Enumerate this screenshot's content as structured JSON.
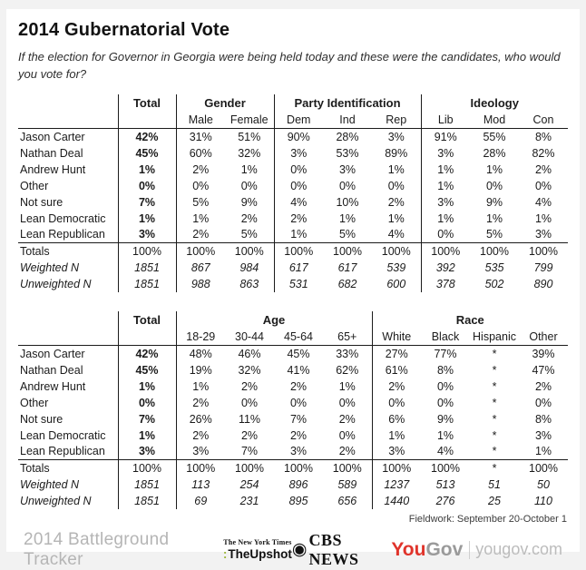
{
  "page": {
    "title": "2014 Gubernatorial Vote",
    "subtitle": "If the election for Governor in Georgia were being held today and these were the candidates, who would you vote for?",
    "fieldwork_note": "Fieldwork:  September 20-October 1"
  },
  "colors": {
    "table_line": "#1b1b1b",
    "page_background": "#f2f2f2",
    "card_background": "#ffffff",
    "tracker_gray": "#b5b5b5",
    "upshot_green": "#9db63c",
    "yougov_red": "#e0342b",
    "yougov_gray": "#9a9a9a"
  },
  "chart_data": [
    {
      "type": "table",
      "total_label": "Total",
      "groups": [
        {
          "label": "Gender",
          "subcols": [
            "Male",
            "Female"
          ]
        },
        {
          "label": "Party Identification",
          "subcols": [
            "Dem",
            "Ind",
            "Rep"
          ]
        },
        {
          "label": "Ideology",
          "subcols": [
            "Lib",
            "Mod",
            "Con"
          ]
        }
      ],
      "rows": [
        {
          "label": "Jason Carter",
          "total": "42%",
          "values": [
            "31%",
            "51%",
            "90%",
            "28%",
            "3%",
            "91%",
            "55%",
            "8%"
          ]
        },
        {
          "label": "Nathan Deal",
          "total": "45%",
          "values": [
            "60%",
            "32%",
            "3%",
            "53%",
            "89%",
            "3%",
            "28%",
            "82%"
          ]
        },
        {
          "label": "Andrew Hunt",
          "total": "1%",
          "values": [
            "2%",
            "1%",
            "0%",
            "3%",
            "1%",
            "1%",
            "1%",
            "2%"
          ]
        },
        {
          "label": "Other",
          "total": "0%",
          "values": [
            "0%",
            "0%",
            "0%",
            "0%",
            "0%",
            "1%",
            "0%",
            "0%"
          ]
        },
        {
          "label": "Not sure",
          "total": "7%",
          "values": [
            "5%",
            "9%",
            "4%",
            "10%",
            "2%",
            "3%",
            "9%",
            "4%"
          ]
        },
        {
          "label": "Lean Democratic",
          "total": "1%",
          "values": [
            "1%",
            "2%",
            "2%",
            "1%",
            "1%",
            "1%",
            "1%",
            "1%"
          ]
        },
        {
          "label": "Lean Republican",
          "total": "3%",
          "values": [
            "2%",
            "5%",
            "1%",
            "5%",
            "4%",
            "0%",
            "5%",
            "3%"
          ]
        }
      ],
      "summary": [
        {
          "label": "Totals",
          "italic": false,
          "total": "100%",
          "values": [
            "100%",
            "100%",
            "100%",
            "100%",
            "100%",
            "100%",
            "100%",
            "100%"
          ]
        },
        {
          "label": "Weighted N",
          "italic": true,
          "total": "1851",
          "values": [
            "867",
            "984",
            "617",
            "617",
            "539",
            "392",
            "535",
            "799"
          ]
        },
        {
          "label": "Unweighted N",
          "italic": true,
          "total": "1851",
          "values": [
            "988",
            "863",
            "531",
            "682",
            "600",
            "378",
            "502",
            "890"
          ]
        }
      ]
    },
    {
      "type": "table",
      "total_label": "Total",
      "groups": [
        {
          "label": "Age",
          "subcols": [
            "18-29",
            "30-44",
            "45-64",
            "65+"
          ]
        },
        {
          "label": "Race",
          "subcols": [
            "White",
            "Black",
            "Hispanic",
            "Other"
          ]
        }
      ],
      "rows": [
        {
          "label": "Jason Carter",
          "total": "42%",
          "values": [
            "48%",
            "46%",
            "45%",
            "33%",
            "27%",
            "77%",
            "*",
            "39%"
          ]
        },
        {
          "label": "Nathan Deal",
          "total": "45%",
          "values": [
            "19%",
            "32%",
            "41%",
            "62%",
            "61%",
            "8%",
            "*",
            "47%"
          ]
        },
        {
          "label": "Andrew Hunt",
          "total": "1%",
          "values": [
            "1%",
            "2%",
            "2%",
            "1%",
            "2%",
            "0%",
            "*",
            "2%"
          ]
        },
        {
          "label": "Other",
          "total": "0%",
          "values": [
            "2%",
            "0%",
            "0%",
            "0%",
            "0%",
            "0%",
            "*",
            "0%"
          ]
        },
        {
          "label": "Not sure",
          "total": "7%",
          "values": [
            "26%",
            "11%",
            "7%",
            "2%",
            "6%",
            "9%",
            "*",
            "8%"
          ]
        },
        {
          "label": "Lean Democratic",
          "total": "1%",
          "values": [
            "2%",
            "2%",
            "2%",
            "0%",
            "1%",
            "1%",
            "*",
            "3%"
          ]
        },
        {
          "label": "Lean Republican",
          "total": "3%",
          "values": [
            "3%",
            "7%",
            "3%",
            "2%",
            "3%",
            "4%",
            "*",
            "1%"
          ]
        }
      ],
      "summary": [
        {
          "label": "Totals",
          "italic": false,
          "total": "100%",
          "values": [
            "100%",
            "100%",
            "100%",
            "100%",
            "100%",
            "100%",
            "*",
            "100%"
          ]
        },
        {
          "label": "Weighted N",
          "italic": true,
          "total": "1851",
          "values": [
            "113",
            "254",
            "896",
            "589",
            "1237",
            "513",
            "51",
            "50"
          ]
        },
        {
          "label": "Unweighted N",
          "italic": true,
          "total": "1851",
          "values": [
            "69",
            "231",
            "895",
            "656",
            "1440",
            "276",
            "25",
            "110"
          ]
        }
      ]
    }
  ],
  "footer": {
    "tracker": "2014 Battleground Tracker",
    "nyt": {
      "times": "The New York Times",
      "colon": ":",
      "upshot": "TheUpshot"
    },
    "cbs": {
      "eye_glyph": "◉",
      "label": "CBS NEWS"
    },
    "yougov": {
      "you": "You",
      "gov": "Gov",
      "domain": "yougov.com"
    }
  }
}
